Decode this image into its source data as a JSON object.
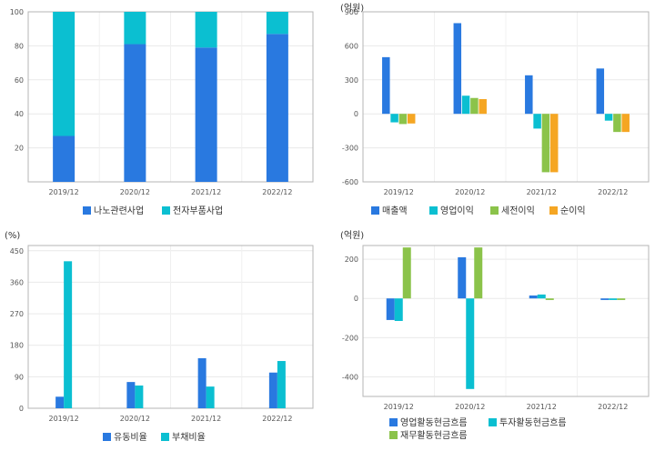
{
  "charts": [
    {
      "type": "bar",
      "stacked": true,
      "unit_label": "",
      "categories": [
        "2019/12",
        "2020/12",
        "2021/12",
        "2022/12"
      ],
      "y_ticks": [
        20,
        40,
        60,
        80,
        100
      ],
      "ylim": [
        0,
        100
      ],
      "grid": true,
      "legend_position": "bottom",
      "series": [
        {
          "name": "나노관련사업",
          "values": [
            27,
            81,
            79,
            87
          ],
          "color": "#2979e0"
        },
        {
          "name": "전자부품사업",
          "values": [
            73,
            19,
            21,
            13
          ],
          "color": "#0bbfd1"
        }
      ]
    },
    {
      "type": "bar",
      "stacked": false,
      "unit_label": "(억원)",
      "categories": [
        "2019/12",
        "2020/12",
        "2021/12",
        "2022/12"
      ],
      "y_ticks": [
        -600,
        -300,
        0,
        300,
        600,
        900
      ],
      "ylim": [
        -600,
        900
      ],
      "grid": true,
      "legend_position": "bottom",
      "series": [
        {
          "name": "매출액",
          "values": [
            500,
            800,
            340,
            400
          ],
          "color": "#2979e0"
        },
        {
          "name": "영업이익",
          "values": [
            -75,
            160,
            -130,
            -60
          ],
          "color": "#0bbfd1"
        },
        {
          "name": "세전이익",
          "values": [
            -90,
            140,
            -515,
            -160
          ],
          "color": "#8bc34a"
        },
        {
          "name": "순이익",
          "values": [
            -85,
            130,
            -515,
            -160
          ],
          "color": "#f5a623"
        }
      ]
    },
    {
      "type": "bar",
      "stacked": false,
      "unit_label": "(%)",
      "categories": [
        "2019/12",
        "2020/12",
        "2021/12",
        "2022/12"
      ],
      "y_ticks": [
        0,
        90,
        180,
        270,
        360,
        450
      ],
      "ylim": [
        0,
        465
      ],
      "grid": true,
      "legend_position": "bottom",
      "series": [
        {
          "name": "유동비율",
          "values": [
            33,
            75,
            143,
            102
          ],
          "color": "#2979e0"
        },
        {
          "name": "부채비율",
          "values": [
            420,
            65,
            62,
            135
          ],
          "color": "#0bbfd1"
        }
      ]
    },
    {
      "type": "bar",
      "stacked": false,
      "unit_label": "(억원)",
      "categories": [
        "2019/12",
        "2020/12",
        "2021/12",
        "2022/12"
      ],
      "y_ticks": [
        -400,
        -200,
        0,
        200
      ],
      "ylim": [
        -500,
        270
      ],
      "grid": true,
      "legend_position": "bottom",
      "series": [
        {
          "name": "영업활동현금흐름",
          "values": [
            -110,
            210,
            15,
            -8
          ],
          "color": "#2979e0"
        },
        {
          "name": "투자활동현금흐름",
          "values": [
            -115,
            -462,
            20,
            -8
          ],
          "color": "#0bbfd1"
        },
        {
          "name": "재무활동현금흐름",
          "values": [
            260,
            260,
            -8,
            -8
          ],
          "color": "#8bc34a"
        }
      ]
    }
  ]
}
